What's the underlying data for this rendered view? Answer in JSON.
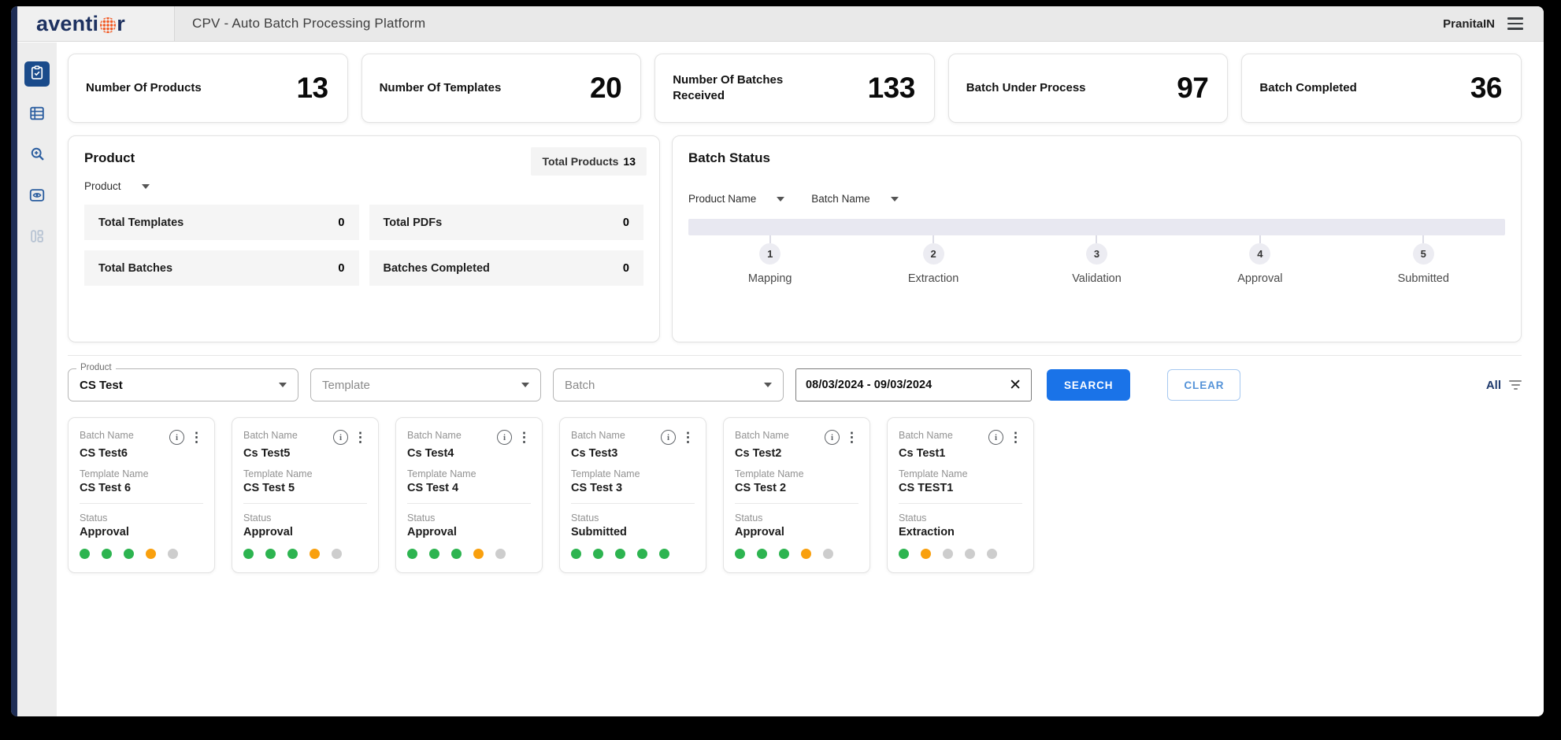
{
  "header": {
    "logo_left": "aventi",
    "logo_right": "r",
    "title": "CPV - Auto Batch Processing Platform",
    "user": "PranitaIN"
  },
  "sidebar": {
    "items": [
      {
        "icon": "clipboard-check-icon",
        "active": true
      },
      {
        "icon": "table-list-icon",
        "active": false
      },
      {
        "icon": "zoom-search-icon",
        "active": false
      },
      {
        "icon": "eye-icon",
        "active": false
      },
      {
        "icon": "dashboard-icon",
        "active": false
      }
    ]
  },
  "stats": [
    {
      "label": "Number Of Products",
      "value": "13"
    },
    {
      "label": "Number Of Templates",
      "value": "20"
    },
    {
      "label": "Number Of Batches Received",
      "value": "133"
    },
    {
      "label": "Batch Under Process",
      "value": "97"
    },
    {
      "label": "Batch Completed",
      "value": "36"
    }
  ],
  "product_panel": {
    "title": "Product",
    "total_label": "Total Products",
    "total_value": "13",
    "dropdown_label": "Product",
    "rows": [
      {
        "label": "Total Templates",
        "value": "0"
      },
      {
        "label": "Total PDFs",
        "value": "0"
      },
      {
        "label": "Total Batches",
        "value": "0"
      },
      {
        "label": "Batches Completed",
        "value": "0"
      }
    ]
  },
  "batch_status": {
    "title": "Batch Status",
    "product_dropdown": "Product Name",
    "batch_dropdown": "Batch Name",
    "steps": [
      {
        "num": "1",
        "label": "Mapping"
      },
      {
        "num": "2",
        "label": "Extraction"
      },
      {
        "num": "3",
        "label": "Validation"
      },
      {
        "num": "4",
        "label": "Approval"
      },
      {
        "num": "5",
        "label": "Submitted"
      }
    ]
  },
  "filters": {
    "product_label": "Product",
    "product_value": "CS Test",
    "template_placeholder": "Template",
    "batch_placeholder": "Batch",
    "date_value": "08/03/2024 - 09/03/2024",
    "search_label": "SEARCH",
    "clear_label": "CLEAR",
    "all_label": "All"
  },
  "card_labels": {
    "batch": "Batch Name",
    "template": "Template Name",
    "status": "Status"
  },
  "batches": [
    {
      "batch_name": "CS Test6",
      "template_name": "CS Test 6",
      "status": "Approval",
      "dots": [
        "green",
        "green",
        "green",
        "orange",
        "gray"
      ]
    },
    {
      "batch_name": "Cs Test5",
      "template_name": "CS Test 5",
      "status": "Approval",
      "dots": [
        "green",
        "green",
        "green",
        "orange",
        "gray"
      ]
    },
    {
      "batch_name": "Cs Test4",
      "template_name": "CS Test 4",
      "status": "Approval",
      "dots": [
        "green",
        "green",
        "green",
        "orange",
        "gray"
      ]
    },
    {
      "batch_name": "Cs Test3",
      "template_name": "CS Test 3",
      "status": "Submitted",
      "dots": [
        "green",
        "green",
        "green",
        "green",
        "green"
      ]
    },
    {
      "batch_name": "Cs Test2",
      "template_name": "CS Test 2",
      "status": "Approval",
      "dots": [
        "green",
        "green",
        "green",
        "orange",
        "gray"
      ]
    },
    {
      "batch_name": "Cs Test1",
      "template_name": "CS TEST1",
      "status": "Extraction",
      "dots": [
        "green",
        "orange",
        "gray",
        "gray",
        "gray"
      ]
    }
  ],
  "icons": {
    "info": "i",
    "kebab": "⋮",
    "close": "✕"
  },
  "colors": {
    "green": "#2db450",
    "orange": "#f9a00e",
    "gray": "#cdcdcd",
    "accent": "#1a73e8",
    "logo_dot": "#f15a24"
  }
}
